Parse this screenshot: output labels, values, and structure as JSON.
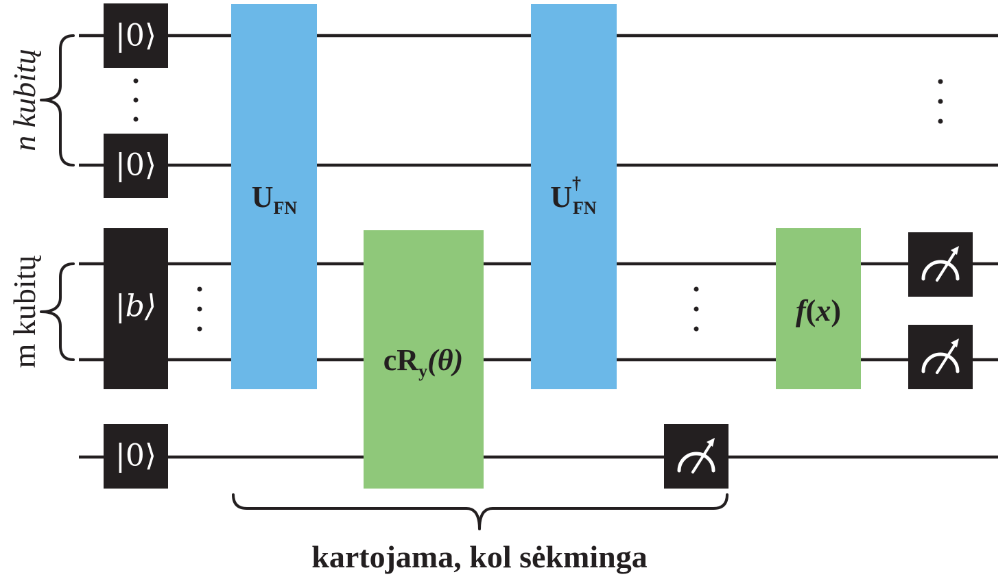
{
  "labels": {
    "n_group": "n kubitų",
    "m_group": "m kubitų",
    "repeat": "kartojama, kol sėkminga"
  },
  "kets": {
    "zero_top": "|0⟩",
    "zero_mid": "|0⟩",
    "b_state": "|b⟩",
    "zero_anc": "|0⟩"
  },
  "gates": {
    "ufn": {
      "main": "U",
      "sub": "FN"
    },
    "cry": {
      "prefix": "cR",
      "sub": "y",
      "arg": "(θ)"
    },
    "ufn_dagger": {
      "main": "U",
      "sup": "†",
      "sub": "FN"
    },
    "fx": {
      "f": "f",
      "open": "(",
      "x": "x",
      "close": ")"
    }
  },
  "ellipsis": "⋮",
  "colors": {
    "dark": "#231f20",
    "blue": "#6bb8e8",
    "green": "#8fc87a"
  }
}
